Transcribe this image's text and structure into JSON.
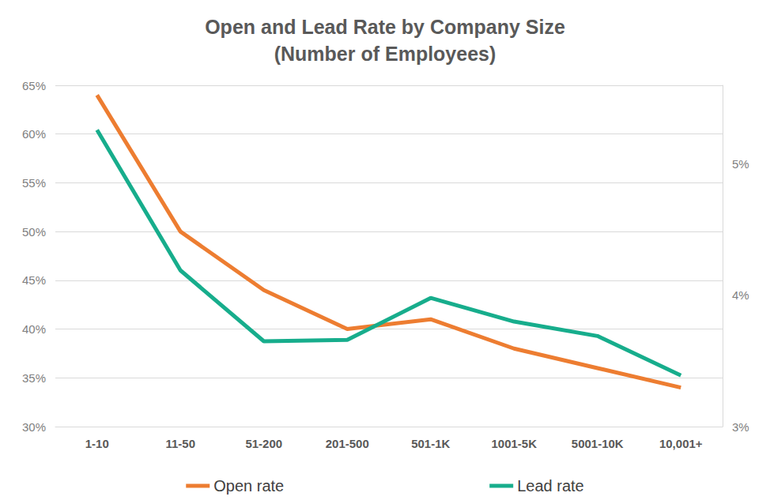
{
  "chart_data": {
    "type": "line",
    "title": "Open and Lead Rate by Company Size\n(Number of Employees)",
    "categories": [
      "1-10",
      "11-50",
      "51-200",
      "201-500",
      "501-1K",
      "1001-5K",
      "5001-10K",
      "10,001+"
    ],
    "series": [
      {
        "name": "Open rate",
        "color": "#ed7d31",
        "values": [
          64,
          50,
          44,
          40,
          41,
          38,
          36,
          34
        ]
      },
      {
        "name": "Lead rate",
        "color": "#17ad8c",
        "axis": "y2",
        "values": [
          5.26,
          4.19,
          3.65,
          3.66,
          3.98,
          3.8,
          3.69,
          3.39
        ]
      }
    ],
    "ylim": [
      30,
      65
    ],
    "yticks": [
      {
        "value": 30,
        "label": "30%"
      },
      {
        "value": 35,
        "label": "35%"
      },
      {
        "value": 40,
        "label": "40%"
      },
      {
        "value": 45,
        "label": "45%"
      },
      {
        "value": 50,
        "label": "50%"
      },
      {
        "value": 55,
        "label": "55%"
      },
      {
        "value": 60,
        "label": "60%"
      },
      {
        "value": 65,
        "label": "65%"
      }
    ],
    "y2lim": [
      3,
      5.6
    ],
    "y2ticks": [
      {
        "value": 3,
        "label": "3%"
      },
      {
        "value": 4,
        "label": "4%"
      },
      {
        "value": 5,
        "label": "5%"
      }
    ],
    "grid": true,
    "legend": "bottom"
  }
}
